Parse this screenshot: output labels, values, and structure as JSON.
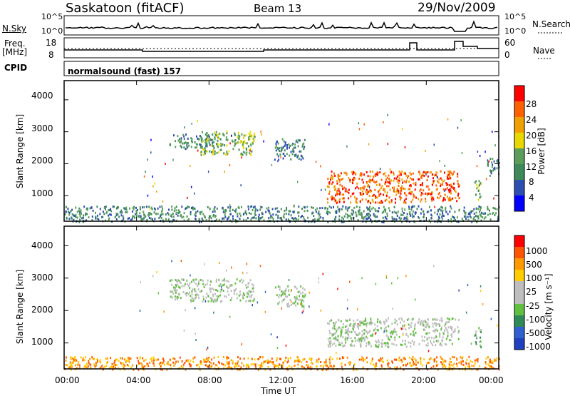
{
  "header": {
    "station": "Saskatoon (fitACF)",
    "beam": "Beam 13",
    "date": "29/Nov/2009"
  },
  "top_panels": {
    "nsky_label": "N.Sky",
    "nsky_ticks": [
      "10^5",
      "10^0"
    ],
    "nsearch_label": "N.Search",
    "nsearch_ticks": [
      "10^5",
      "10^0"
    ],
    "freq_label_line1": "Freq.",
    "freq_label_line2": "[MHz]",
    "freq_ticks": [
      "18",
      "8"
    ],
    "nave_label": "Nave",
    "nave_ticks": [
      "60",
      "0"
    ],
    "cpid_label": "CPID",
    "cpid_text": "normalsound (fast) 157"
  },
  "colors": {
    "power_scale": [
      "#0000ff",
      "#2d4fb0",
      "#3c8a5a",
      "#5a9e5a",
      "#e8d800",
      "#f0a000",
      "#ff6000",
      "#ff0000"
    ],
    "velocity_scale": [
      "#2040c0",
      "#305fd0",
      "#2e8b57",
      "#60c040",
      "#bebebe",
      "#bebebe",
      "#ffcc00",
      "#ff9900",
      "#ff5500",
      "#ff0000"
    ]
  },
  "chart_data": [
    {
      "type": "heatmap",
      "name": "power-panel",
      "ylabel": "Slant Range [km]",
      "y_ticks": [
        "1000",
        "2000",
        "3000",
        "4000"
      ],
      "ylim": [
        200,
        4600
      ],
      "x_ticks": [
        "00:00",
        "04:00",
        "08:00",
        "12:00",
        "16:00",
        "20:00",
        "00:00"
      ],
      "colorbar_label": "Power [dB]",
      "colorbar_ticks": [
        "4",
        "8",
        "12",
        "16",
        "20",
        "24",
        "28"
      ],
      "regions": [
        {
          "t0": 5.8,
          "t1": 8.3,
          "r0": 2500,
          "r1": 2950,
          "level": 2
        },
        {
          "t0": 7.5,
          "t1": 10.5,
          "r0": 2300,
          "r1": 3050,
          "level": 3
        },
        {
          "t0": 11.6,
          "t1": 13.3,
          "r0": 2150,
          "r1": 2800,
          "level": 2
        },
        {
          "t0": 14.5,
          "t1": 19.4,
          "r0": 800,
          "r1": 1800,
          "level": 6
        },
        {
          "t0": 19.5,
          "t1": 21.8,
          "r0": 850,
          "r1": 1800,
          "level": 6
        },
        {
          "t0": 22.6,
          "t1": 23.0,
          "r0": 900,
          "r1": 1500,
          "level": 3
        },
        {
          "t0": 23.3,
          "t1": 24.0,
          "r0": 1600,
          "r1": 2200,
          "level": 2
        },
        {
          "t0": 0.0,
          "t1": 24.0,
          "r0": 200,
          "r1": 700,
          "level": 2
        }
      ]
    },
    {
      "type": "heatmap",
      "name": "velocity-panel",
      "ylabel": "Slant Range [km]",
      "y_ticks": [
        "1000",
        "2000",
        "3000",
        "4000"
      ],
      "ylim": [
        200,
        4600
      ],
      "x_ticks": [
        "00:00",
        "04:00",
        "08:00",
        "12:00",
        "16:00",
        "20:00",
        "00:00"
      ],
      "xlabel": "Time UT",
      "colorbar_label": "Velocity [m s⁻¹]",
      "colorbar_ticks": [
        "1000",
        "500",
        "100",
        "25",
        "-25",
        "-100",
        "-500",
        "-1000"
      ],
      "regions": [
        {
          "t0": 5.8,
          "t1": 10.5,
          "r0": 2300,
          "r1": 3000,
          "level": 4
        },
        {
          "t0": 11.6,
          "t1": 13.3,
          "r0": 2150,
          "r1": 2800,
          "level": 4
        },
        {
          "t0": 14.5,
          "t1": 19.4,
          "r0": 900,
          "r1": 1800,
          "level": 4
        },
        {
          "t0": 19.5,
          "t1": 21.8,
          "r0": 950,
          "r1": 1800,
          "level": 4
        },
        {
          "t0": 22.6,
          "t1": 23.0,
          "r0": 900,
          "r1": 1500,
          "level": 3
        },
        {
          "t0": 0.0,
          "t1": 24.0,
          "r0": 200,
          "r1": 600,
          "level": 7
        }
      ]
    }
  ]
}
